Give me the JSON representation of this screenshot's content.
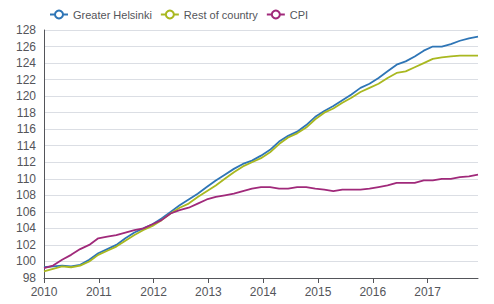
{
  "chart_data": {
    "type": "line",
    "x": [
      2010,
      2010.165,
      2010.33,
      2010.495,
      2010.66,
      2010.825,
      2010.99,
      2011.155,
      2011.32,
      2011.485,
      2011.65,
      2011.815,
      2011.98,
      2012.145,
      2012.31,
      2012.475,
      2012.64,
      2012.805,
      2012.97,
      2013.135,
      2013.3,
      2013.465,
      2013.63,
      2013.795,
      2013.96,
      2014.125,
      2014.29,
      2014.455,
      2014.62,
      2014.785,
      2014.95,
      2015.115,
      2015.28,
      2015.445,
      2015.61,
      2015.775,
      2015.94,
      2016.105,
      2016.27,
      2016.435,
      2016.6,
      2016.765,
      2016.93,
      2017.095,
      2017.26,
      2017.425,
      2017.59,
      2017.755,
      2017.92
    ],
    "series": [
      {
        "name": "Greater Helsinki",
        "color": "#2e75b6",
        "values": [
          99.3,
          99.4,
          99.5,
          99.4,
          99.6,
          100.2,
          101.0,
          101.5,
          102.0,
          102.8,
          103.5,
          104.0,
          104.5,
          105.2,
          106.0,
          106.8,
          107.5,
          108.2,
          109.0,
          109.8,
          110.5,
          111.2,
          111.8,
          112.2,
          112.8,
          113.5,
          114.5,
          115.2,
          115.7,
          116.5,
          117.5,
          118.2,
          118.8,
          119.5,
          120.2,
          121.0,
          121.5,
          122.2,
          123.0,
          123.8,
          124.2,
          124.8,
          125.5,
          126.0,
          126.0,
          126.3,
          126.7,
          127.0,
          127.2
        ]
      },
      {
        "name": "Rest of country",
        "color": "#a9b820",
        "values": [
          98.8,
          99.1,
          99.4,
          99.3,
          99.5,
          100.0,
          100.8,
          101.3,
          101.8,
          102.5,
          103.2,
          103.8,
          104.3,
          105.0,
          105.8,
          106.5,
          107.0,
          107.8,
          108.5,
          109.2,
          110.0,
          110.8,
          111.5,
          112.0,
          112.5,
          113.2,
          114.2,
          115.0,
          115.5,
          116.2,
          117.2,
          118.0,
          118.5,
          119.2,
          119.8,
          120.5,
          121.0,
          121.5,
          122.2,
          122.8,
          123.0,
          123.5,
          124.0,
          124.5,
          124.7,
          124.8,
          124.9,
          124.9,
          124.9
        ]
      },
      {
        "name": "CPI",
        "color": "#a0297a",
        "values": [
          99.2,
          99.5,
          100.2,
          100.8,
          101.5,
          102.0,
          102.8,
          103.0,
          103.2,
          103.5,
          103.8,
          104.0,
          104.5,
          105.0,
          105.8,
          106.2,
          106.5,
          107.0,
          107.5,
          107.8,
          108.0,
          108.2,
          108.5,
          108.8,
          109.0,
          109.0,
          108.8,
          108.8,
          109.0,
          109.0,
          108.8,
          108.7,
          108.5,
          108.7,
          108.7,
          108.7,
          108.8,
          109.0,
          109.2,
          109.5,
          109.5,
          109.5,
          109.8,
          109.8,
          110.0,
          110.0,
          110.2,
          110.3,
          110.5
        ]
      }
    ],
    "xlim": [
      2010,
      2017.92
    ],
    "xticks": [
      2010,
      2011,
      2012,
      2013,
      2014,
      2015,
      2016,
      2017
    ],
    "ylim": [
      98,
      128
    ],
    "yticks": [
      98,
      100,
      102,
      104,
      106,
      108,
      110,
      112,
      114,
      116,
      118,
      120,
      122,
      124,
      126,
      128
    ],
    "grid": true,
    "legend": "upper left"
  }
}
